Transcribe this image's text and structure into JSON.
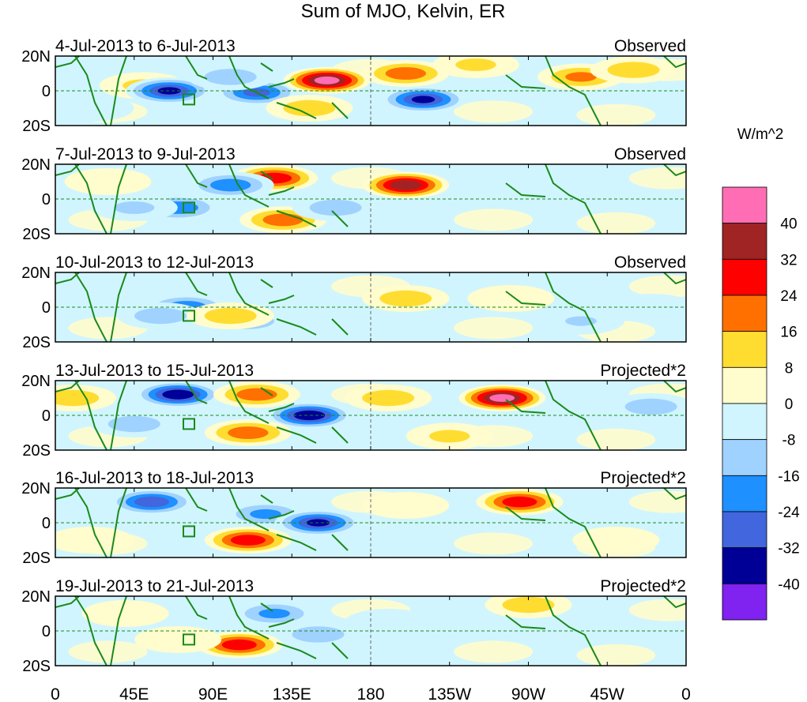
{
  "chart_data": {
    "type": "heatmap",
    "title": "Sum of MJO, Kelvin, ER",
    "colorbar": {
      "unit": "W/m^2",
      "levels": [
        -40,
        -32,
        -24,
        -16,
        -8,
        0,
        8,
        16,
        24,
        32,
        40
      ],
      "colors": [
        "#8022f0",
        "#000096",
        "#4166de",
        "#1e90ff",
        "#a0d2ff",
        "#d0f5ff",
        "#fffccd",
        "#ffdd30",
        "#ff7000",
        "#ff0000",
        "#a02424",
        "#ff6eb4"
      ]
    },
    "xticks": [
      "0",
      "45E",
      "90E",
      "135E",
      "180",
      "135W",
      "90W",
      "45W",
      "0"
    ],
    "yticks": [
      "20N",
      "0",
      "20S"
    ],
    "xlim": [
      0,
      360
    ],
    "ylim": [
      -20,
      20
    ],
    "panels": [
      {
        "period": "4-Jul-2013 to 6-Jul-2013",
        "label": "Observed",
        "features": [
          [
            50,
            3,
            12
          ],
          [
            65,
            0,
            -35
          ],
          [
            115,
            -1,
            -28
          ],
          [
            100,
            8,
            -16
          ],
          [
            155,
            6,
            45
          ],
          [
            145,
            -10,
            16
          ],
          [
            210,
            -5,
            -35
          ],
          [
            200,
            10,
            24
          ],
          [
            240,
            15,
            12
          ],
          [
            300,
            8,
            20
          ],
          [
            330,
            12,
            16
          ],
          [
            20,
            -10,
            -8
          ]
        ]
      },
      {
        "period": "7-Jul-2013 to 9-Jul-2013",
        "label": "Observed",
        "features": [
          [
            125,
            12,
            32
          ],
          [
            200,
            8,
            40
          ],
          [
            130,
            -12,
            24
          ],
          [
            70,
            -5,
            -24
          ],
          [
            100,
            8,
            -24
          ],
          [
            160,
            -5,
            -16
          ],
          [
            45,
            -5,
            -12
          ],
          [
            30,
            10,
            8
          ],
          [
            300,
            5,
            -8
          ]
        ]
      },
      {
        "period": "10-Jul-2013 to 12-Jul-2013",
        "label": "Observed",
        "features": [
          [
            75,
            0,
            -24
          ],
          [
            60,
            -5,
            -16
          ],
          [
            110,
            -8,
            -16
          ],
          [
            200,
            5,
            16
          ],
          [
            100,
            -5,
            16
          ],
          [
            300,
            -8,
            -10
          ],
          [
            260,
            5,
            8
          ],
          [
            340,
            0,
            -8
          ]
        ]
      },
      {
        "period": "13-Jul-2013 to 15-Jul-2013",
        "label": "Projected*2",
        "features": [
          [
            70,
            12,
            -40
          ],
          [
            115,
            12,
            24
          ],
          [
            145,
            0,
            -40
          ],
          [
            255,
            10,
            45
          ],
          [
            110,
            -10,
            24
          ],
          [
            190,
            10,
            16
          ],
          [
            45,
            -5,
            -16
          ],
          [
            10,
            10,
            16
          ],
          [
            225,
            -12,
            12
          ],
          [
            340,
            5,
            -16
          ]
        ]
      },
      {
        "period": "16-Jul-2013 to 18-Jul-2013",
        "label": "Projected*2",
        "features": [
          [
            55,
            12,
            -32
          ],
          [
            120,
            5,
            -20
          ],
          [
            150,
            0,
            -35
          ],
          [
            110,
            -10,
            32
          ],
          [
            265,
            12,
            32
          ],
          [
            200,
            10,
            8
          ],
          [
            320,
            -10,
            8
          ],
          [
            20,
            -10,
            8
          ]
        ]
      },
      {
        "period": "19-Jul-2013 to 21-Jul-2013",
        "label": "Projected*2",
        "features": [
          [
            105,
            -8,
            32
          ],
          [
            125,
            10,
            -20
          ],
          [
            150,
            -2,
            -16
          ],
          [
            270,
            15,
            16
          ],
          [
            70,
            -5,
            8
          ],
          [
            40,
            10,
            8
          ],
          [
            190,
            5,
            -8
          ]
        ]
      }
    ]
  }
}
